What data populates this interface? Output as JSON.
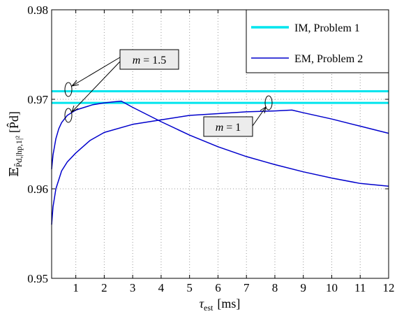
{
  "chart_data": {
    "type": "line",
    "xlabel_sym": "τ",
    "xlabel_sub": "est",
    "xlabel_unit": "[ms]",
    "ylabel_E": "𝔼",
    "ylabel_sub": "P̂d,|hp,1|²",
    "ylabel_arg": "[P̂d]",
    "xlim": [
      0.15,
      12
    ],
    "ylim": [
      0.95,
      0.98
    ],
    "xticks": [
      "1",
      "2",
      "3",
      "4",
      "5",
      "6",
      "7",
      "8",
      "9",
      "10",
      "11",
      "12"
    ],
    "yticks": [
      "0.95",
      "0.96",
      "0.97",
      "0.98"
    ],
    "grid": true,
    "legend_position": "top-right",
    "series": [
      {
        "name": "IM, Problem 1",
        "color": "#00e5ee",
        "group": "m = 1.5",
        "x": [
          0.15,
          12
        ],
        "y": [
          0.9709,
          0.9709
        ]
      },
      {
        "name": "IM, Problem 1",
        "color": "#00e5ee",
        "group": "m = 1",
        "x": [
          0.15,
          12
        ],
        "y": [
          0.9696,
          0.9696
        ]
      },
      {
        "name": "EM, Problem 2",
        "color": "#0000cc",
        "group": "m = 1.5",
        "x": [
          0.15,
          0.2,
          0.3,
          0.4,
          0.5,
          0.7,
          1.0,
          1.3,
          1.6,
          2.0,
          2.3,
          2.6,
          3.0,
          4.0,
          5.0,
          6.0,
          7.0,
          8.0,
          9.0,
          10.0,
          11.0,
          12.0
        ],
        "y": [
          0.9622,
          0.9638,
          0.9656,
          0.9667,
          0.9674,
          0.9682,
          0.9688,
          0.9691,
          0.9694,
          0.9696,
          0.9697,
          0.9698,
          0.9691,
          0.9675,
          0.966,
          0.9647,
          0.9636,
          0.9627,
          0.9619,
          0.9612,
          0.9606,
          0.9603
        ]
      },
      {
        "name": "EM, Problem 2",
        "color": "#0000cc",
        "group": "m = 1",
        "x": [
          0.15,
          0.2,
          0.3,
          0.5,
          0.7,
          1.0,
          1.5,
          2.0,
          3.0,
          4.0,
          5.0,
          6.0,
          7.0,
          8.0,
          8.6,
          9.0,
          10.0,
          11.0,
          12.0
        ],
        "y": [
          0.956,
          0.958,
          0.96,
          0.962,
          0.963,
          0.964,
          0.9654,
          0.9663,
          0.9672,
          0.9677,
          0.9682,
          0.9684,
          0.9686,
          0.9687,
          0.9688,
          0.9685,
          0.9678,
          0.967,
          0.9662
        ]
      }
    ],
    "legend": [
      {
        "label": "IM, Problem 1",
        "color": "#00e5ee"
      },
      {
        "label": "EM, Problem 2",
        "color": "#0000cc"
      }
    ],
    "annotations": [
      {
        "var": "m",
        "eq": " = ",
        "val": "1.5"
      },
      {
        "var": "m",
        "eq": " = ",
        "val": "1"
      }
    ]
  }
}
